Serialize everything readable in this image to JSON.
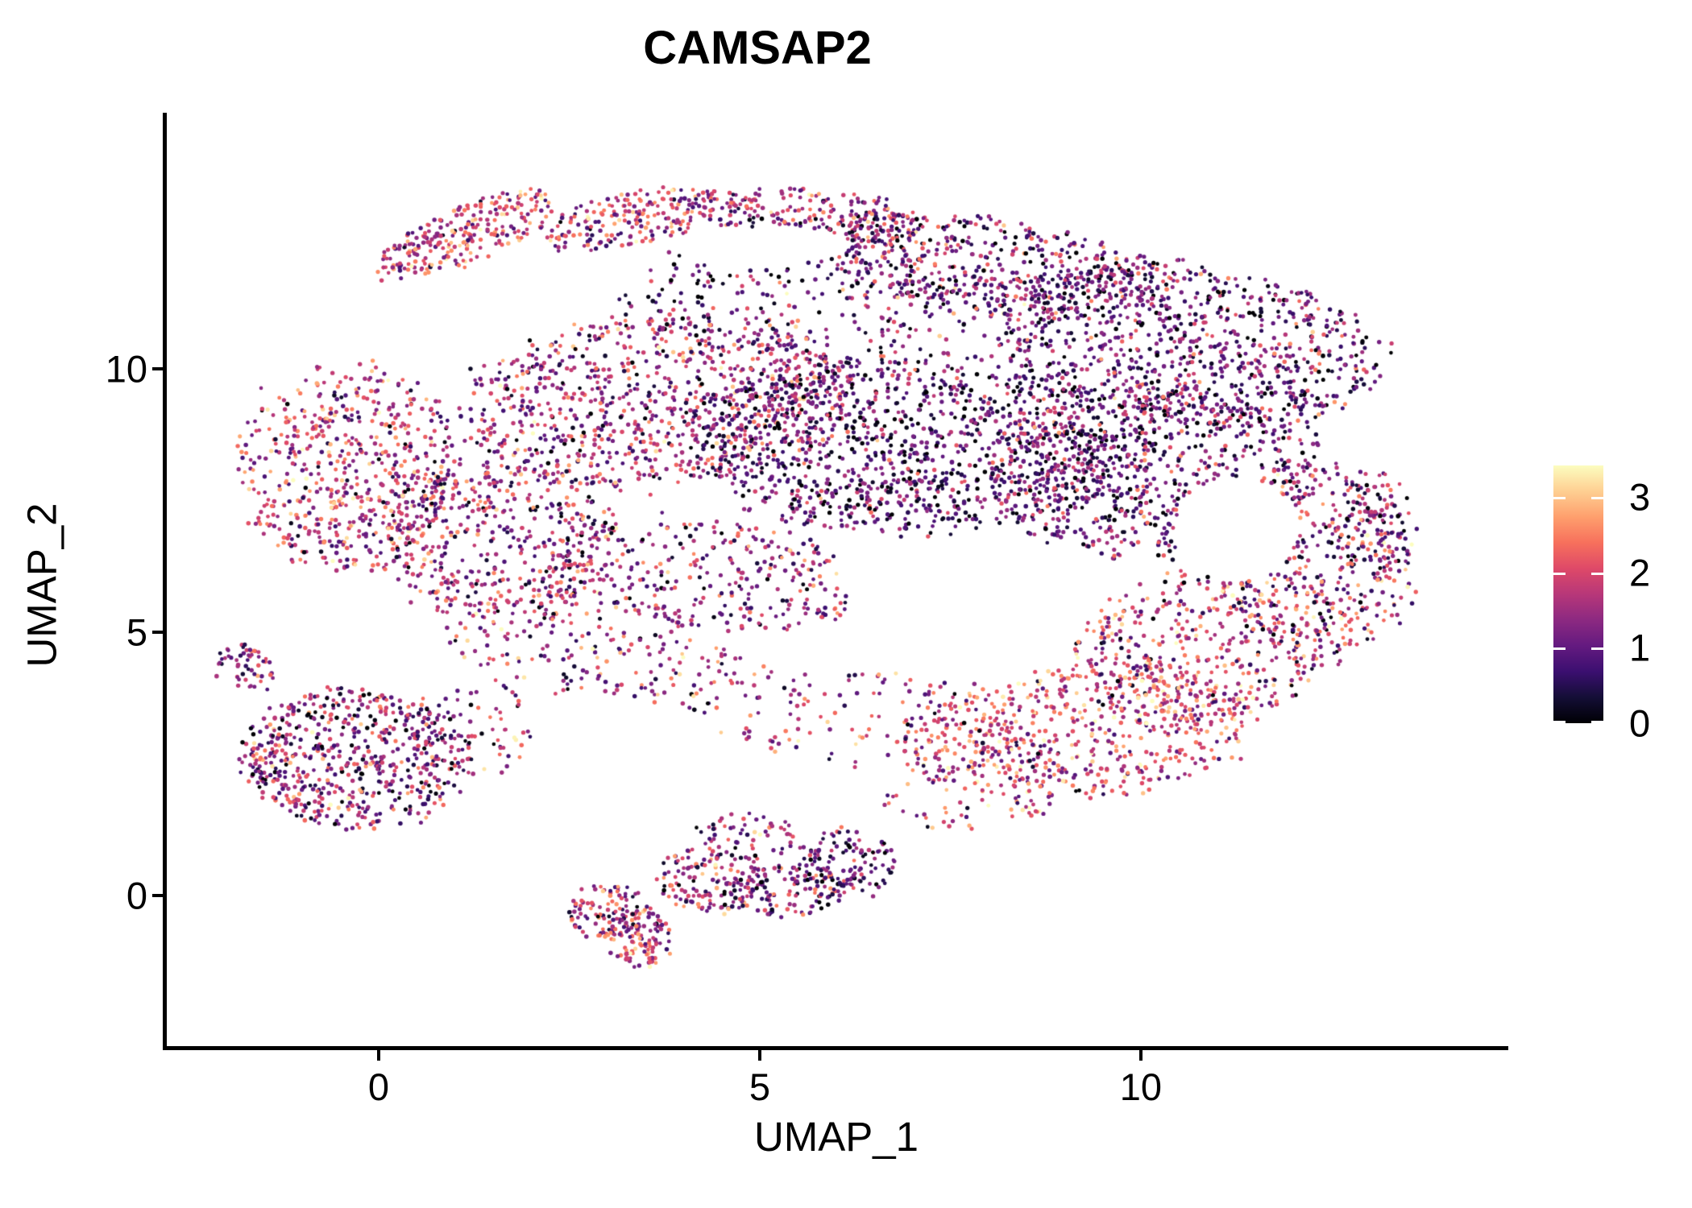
{
  "title": "CAMSAP2",
  "x_axis": {
    "label": "UMAP_1",
    "tick_labels": [
      "0",
      "5",
      "10"
    ],
    "tick_values": [
      0,
      5,
      10
    ]
  },
  "y_axis": {
    "label": "UMAP_2",
    "tick_labels": [
      "0",
      "5",
      "10"
    ],
    "tick_values": [
      0,
      5,
      10
    ]
  },
  "colorbar": {
    "tick_labels": [
      "3",
      "2",
      "1",
      "0"
    ],
    "tick_values": [
      3,
      2,
      1,
      0
    ],
    "vmin": 0,
    "vmax": 3.42,
    "colormap_name": "magma",
    "stops": [
      [
        0.0,
        "#000004"
      ],
      [
        0.1,
        "#140e36"
      ],
      [
        0.2,
        "#3b0f70"
      ],
      [
        0.3,
        "#641a80"
      ],
      [
        0.4,
        "#8c2981"
      ],
      [
        0.5,
        "#b73779"
      ],
      [
        0.6,
        "#de4968"
      ],
      [
        0.7,
        "#f7705c"
      ],
      [
        0.8,
        "#fe9f6d"
      ],
      [
        0.9,
        "#fecf92"
      ],
      [
        1.0,
        "#fcfdbf"
      ]
    ]
  },
  "chart_data": {
    "type": "scatter",
    "title": "CAMSAP2",
    "xlabel": "UMAP_1",
    "ylabel": "UMAP_2",
    "x_range": [
      -2.8,
      14.81
    ],
    "y_range": [
      -2.91,
      14.83
    ],
    "x_ticks": [
      0,
      5,
      10
    ],
    "y_ticks": [
      0,
      5,
      10
    ],
    "grid": false,
    "legend_position": "right-colorbar",
    "color_value_name": "expression",
    "color_domain": [
      0,
      3.42
    ],
    "point_radius_px": 2.5,
    "seed": 1337,
    "note": "UMAP feature plot of ~9800 cells; per-cell expression 0-3.4 mapped to magma colormap. Point cloud approximated by gaussian/elliptical cluster blobs.",
    "clusters": [
      {
        "name": "rim-topleft-beak",
        "cx": 1.15,
        "cy": 12.55,
        "rx": 1.35,
        "ry": 0.5,
        "rot": 33,
        "n": 260,
        "vmean": 1.9,
        "vsd": 0.7
      },
      {
        "name": "rim-left",
        "cx": 3.3,
        "cy": 12.85,
        "rx": 1.25,
        "ry": 0.5,
        "rot": 18,
        "n": 200,
        "vmean": 1.7,
        "vsd": 0.75
      },
      {
        "name": "rim-right",
        "cx": 5.6,
        "cy": 12.9,
        "rx": 1.6,
        "ry": 0.55,
        "rot": -8,
        "n": 240,
        "vmean": 1.5,
        "vsd": 0.8
      },
      {
        "name": "top-right-band",
        "cx": 7.9,
        "cy": 11.95,
        "rx": 2.3,
        "ry": 0.9,
        "rot": -12,
        "n": 520,
        "vmean": 1.1,
        "vsd": 0.8
      },
      {
        "name": "right-top-mass",
        "cx": 10.6,
        "cy": 10.5,
        "rx": 2.6,
        "ry": 1.5,
        "rot": -15,
        "n": 900,
        "vmean": 1.0,
        "vsd": 0.7
      },
      {
        "name": "core-west",
        "cx": 3.6,
        "cy": 9.4,
        "rx": 2.6,
        "ry": 1.6,
        "rot": 10,
        "n": 900,
        "vmean": 1.45,
        "vsd": 0.8
      },
      {
        "name": "core-center",
        "cx": 7.0,
        "cy": 8.6,
        "rx": 2.9,
        "ry": 1.7,
        "rot": 0,
        "n": 1250,
        "vmean": 0.9,
        "vsd": 0.7
      },
      {
        "name": "core-right",
        "cx": 10.2,
        "cy": 8.0,
        "rx": 2.2,
        "ry": 1.6,
        "rot": 0,
        "n": 800,
        "vmean": 1.0,
        "vsd": 0.75
      },
      {
        "name": "left-lobe",
        "cx": -0.35,
        "cy": 8.1,
        "rx": 1.45,
        "ry": 1.95,
        "rot": 0,
        "n": 620,
        "vmean": 1.7,
        "vsd": 0.8
      },
      {
        "name": "left-mid",
        "cx": 1.6,
        "cy": 6.7,
        "rx": 1.6,
        "ry": 1.5,
        "rot": -20,
        "n": 430,
        "vmean": 1.5,
        "vsd": 0.8
      },
      {
        "name": "mid-lower-band",
        "cx": 4.3,
        "cy": 6.1,
        "rx": 2.2,
        "ry": 1.0,
        "rot": -10,
        "n": 330,
        "vmean": 1.4,
        "vsd": 0.8
      },
      {
        "name": "bottomright-warm",
        "cx": 9.2,
        "cy": 3.1,
        "rx": 2.3,
        "ry": 1.25,
        "rot": 8,
        "n": 560,
        "vmean": 2.0,
        "vsd": 0.75
      },
      {
        "name": "bottomright-warm2",
        "cx": 10.9,
        "cy": 4.7,
        "rx": 1.9,
        "ry": 1.4,
        "rot": 20,
        "n": 470,
        "vmean": 1.8,
        "vsd": 0.8
      },
      {
        "name": "right-lobe",
        "cx": 12.3,
        "cy": 6.3,
        "rx": 1.3,
        "ry": 1.8,
        "rot": 0,
        "n": 360,
        "vmean": 1.5,
        "vsd": 0.9
      },
      {
        "name": "right-tip",
        "cx": 13.05,
        "cy": 7.0,
        "rx": 0.55,
        "ry": 1.1,
        "rot": 0,
        "n": 110,
        "vmean": 1.3,
        "vsd": 0.8
      },
      {
        "name": "sparse-under-rim",
        "cx": 5.5,
        "cy": 11.3,
        "rx": 2.4,
        "ry": 1.15,
        "rot": 0,
        "n": 230,
        "vmean": 1.0,
        "vsd": 0.8
      },
      {
        "name": "sparse-connector-left",
        "cx": 2.8,
        "cy": 4.7,
        "rx": 2.1,
        "ry": 0.9,
        "rot": -15,
        "n": 190,
        "vmean": 1.6,
        "vsd": 0.8
      },
      {
        "name": "sparse-band",
        "cx": 6.1,
        "cy": 3.4,
        "rx": 2.4,
        "ry": 0.9,
        "rot": -5,
        "n": 140,
        "vmean": 1.6,
        "vsd": 0.8
      },
      {
        "name": "sparse-connector-right",
        "cx": 7.9,
        "cy": 2.1,
        "rx": 1.3,
        "ry": 0.8,
        "rot": 15,
        "n": 90,
        "vmean": 1.8,
        "vsd": 0.8
      },
      {
        "name": "left-cluster",
        "cx": -0.3,
        "cy": 2.6,
        "rx": 1.5,
        "ry": 1.3,
        "rot": -8,
        "n": 620,
        "vmean": 1.25,
        "vsd": 0.8
      },
      {
        "name": "left-cluster-arm",
        "cx": -1.75,
        "cy": 4.3,
        "rx": 0.35,
        "ry": 0.55,
        "rot": 25,
        "n": 55,
        "vmean": 1.5,
        "vsd": 0.7
      },
      {
        "name": "left-cluster-trail",
        "cx": 1.3,
        "cy": 3.2,
        "rx": 0.8,
        "ry": 0.9,
        "rot": 0,
        "n": 70,
        "vmean": 1.4,
        "vsd": 0.8
      },
      {
        "name": "bottom-arm-a",
        "cx": 2.95,
        "cy": -0.3,
        "rx": 0.5,
        "ry": 0.55,
        "rot": 0,
        "n": 90,
        "vmean": 1.6,
        "vsd": 0.75
      },
      {
        "name": "bottom-arm-b",
        "cx": 3.4,
        "cy": -0.8,
        "rx": 0.45,
        "ry": 0.6,
        "rot": 15,
        "n": 120,
        "vmean": 1.8,
        "vsd": 0.7
      },
      {
        "name": "bottom-arm-c",
        "cx": 4.35,
        "cy": 0.3,
        "rx": 0.75,
        "ry": 0.6,
        "rot": -10,
        "n": 140,
        "vmean": 1.5,
        "vsd": 0.8
      },
      {
        "name": "bottom-arm-d",
        "cx": 5.35,
        "cy": 0.1,
        "rx": 0.8,
        "ry": 0.5,
        "rot": 5,
        "n": 120,
        "vmean": 1.2,
        "vsd": 0.8
      },
      {
        "name": "bottom-arm-e",
        "cx": 6.15,
        "cy": 0.6,
        "rx": 0.6,
        "ry": 0.7,
        "rot": 20,
        "n": 120,
        "vmean": 1.0,
        "vsd": 0.75
      },
      {
        "name": "bottom-arm-top",
        "cx": 4.8,
        "cy": 1.1,
        "rx": 0.7,
        "ry": 0.45,
        "rot": 0,
        "n": 60,
        "vmean": 1.3,
        "vsd": 0.8
      }
    ],
    "holes": [
      {
        "cx": 11.25,
        "cy": 6.95,
        "rx": 0.8,
        "ry": 1.0
      },
      {
        "cx": 7.0,
        "cy": 6.15,
        "rx": 0.85,
        "ry": 0.55
      },
      {
        "cx": 5.1,
        "cy": 12.35,
        "rx": 1.1,
        "ry": 0.35
      }
    ]
  }
}
